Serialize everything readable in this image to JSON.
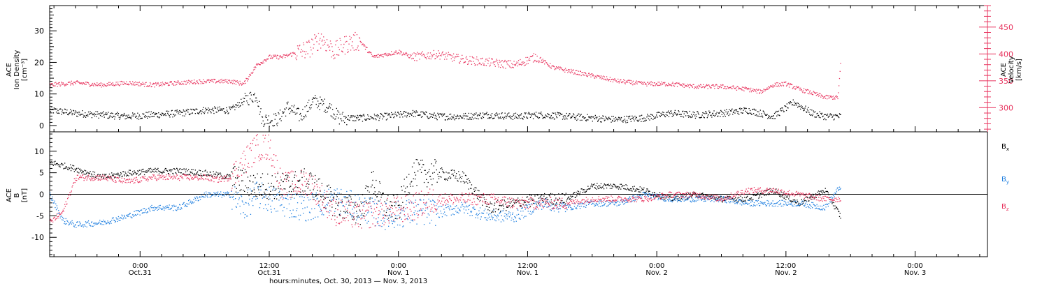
{
  "figure": {
    "xlabel": "hours:minutes, Oct. 30, 2013 — Nov.  3, 2013",
    "x_ticks": [
      {
        "t": 0.35,
        "time": "0:00",
        "date": "Oct.31"
      },
      {
        "t": 0.85,
        "time": "12:00",
        "date": "Oct.31"
      },
      {
        "t": 1.35,
        "time": "0:00",
        "date": "Nov. 1"
      },
      {
        "t": 1.85,
        "time": "12:00",
        "date": "Nov. 1"
      },
      {
        "t": 2.35,
        "time": "0:00",
        "date": "Nov. 2"
      },
      {
        "t": 2.85,
        "time": "12:00",
        "date": "Nov. 2"
      },
      {
        "t": 3.35,
        "time": "0:00",
        "date": "Nov. 3"
      }
    ],
    "xlim": [
      0.0,
      3.63
    ],
    "data_end": 3.06
  },
  "colors": {
    "black": "#000000",
    "pink": "#e8355f",
    "blue": "#1f7fe0",
    "axis": "#000000"
  },
  "chart_data": [
    {
      "type": "scatter",
      "ylabel_left": [
        "ACE",
        "Ion Density",
        "[cm⁻³]"
      ],
      "ylabel_right": [
        "ACE",
        "Velocity",
        "[km/s]"
      ],
      "ylim_left": [
        -2,
        38
      ],
      "yticks_left": [
        0,
        10,
        20,
        30
      ],
      "ylim_right": [
        255,
        490
      ],
      "yticks_right": [
        300,
        350,
        400,
        450
      ],
      "series": [
        {
          "axis": "left",
          "color": "black",
          "values": [
            [
              0.0,
              5
            ],
            [
              0.1,
              4
            ],
            [
              0.2,
              3.5
            ],
            [
              0.3,
              3
            ],
            [
              0.4,
              3.5
            ],
            [
              0.5,
              4
            ],
            [
              0.6,
              5
            ],
            [
              0.7,
              5
            ],
            [
              0.75,
              8
            ],
            [
              0.8,
              10
            ],
            [
              0.82,
              2
            ],
            [
              0.88,
              2
            ],
            [
              0.92,
              6
            ],
            [
              0.97,
              3
            ],
            [
              1.02,
              8
            ],
            [
              1.08,
              6
            ],
            [
              1.12,
              2.5
            ],
            [
              1.2,
              2.5
            ],
            [
              1.3,
              3
            ],
            [
              1.4,
              4
            ],
            [
              1.5,
              3
            ],
            [
              1.6,
              3
            ],
            [
              1.7,
              3.5
            ],
            [
              1.8,
              3
            ],
            [
              1.9,
              3.5
            ],
            [
              2.0,
              3
            ],
            [
              2.1,
              2.5
            ],
            [
              2.2,
              2
            ],
            [
              2.3,
              2.5
            ],
            [
              2.4,
              4
            ],
            [
              2.5,
              3.5
            ],
            [
              2.6,
              4
            ],
            [
              2.7,
              5
            ],
            [
              2.8,
              3
            ],
            [
              2.88,
              7.5
            ],
            [
              2.95,
              4
            ],
            [
              3.0,
              3
            ],
            [
              3.06,
              3
            ]
          ]
        },
        {
          "axis": "right",
          "color": "pink",
          "values": [
            [
              0.0,
              343
            ],
            [
              0.1,
              347
            ],
            [
              0.2,
              343
            ],
            [
              0.3,
              347
            ],
            [
              0.4,
              343
            ],
            [
              0.5,
              347
            ],
            [
              0.6,
              350
            ],
            [
              0.7,
              350
            ],
            [
              0.75,
              345
            ],
            [
              0.8,
              380
            ],
            [
              0.85,
              395
            ],
            [
              0.9,
              395
            ],
            [
              1.0,
              410
            ],
            [
              1.05,
              430
            ],
            [
              1.1,
              405
            ],
            [
              1.15,
              420
            ],
            [
              1.2,
              425
            ],
            [
              1.25,
              395
            ],
            [
              1.3,
              400
            ],
            [
              1.35,
              405
            ],
            [
              1.4,
              395
            ],
            [
              1.5,
              400
            ],
            [
              1.6,
              390
            ],
            [
              1.7,
              385
            ],
            [
              1.8,
              380
            ],
            [
              1.88,
              395
            ],
            [
              1.95,
              375
            ],
            [
              2.0,
              370
            ],
            [
              2.1,
              360
            ],
            [
              2.2,
              350
            ],
            [
              2.3,
              345
            ],
            [
              2.4,
              345
            ],
            [
              2.5,
              340
            ],
            [
              2.6,
              340
            ],
            [
              2.7,
              335
            ],
            [
              2.75,
              330
            ],
            [
              2.8,
              343
            ],
            [
              2.85,
              345
            ],
            [
              2.9,
              335
            ],
            [
              2.95,
              328
            ],
            [
              3.0,
              320
            ],
            [
              3.05,
              320
            ],
            [
              3.06,
              380
            ]
          ]
        }
      ]
    },
    {
      "type": "scatter",
      "ylabel_left": [
        "ACE",
        "B",
        "[nT]"
      ],
      "ylim": [
        -14.5,
        14.5
      ],
      "yticks": [
        -10,
        -5,
        0,
        5,
        10
      ],
      "zero_line": true,
      "legend": [
        {
          "label": "B",
          "sub": "x",
          "color": "black"
        },
        {
          "label": "B",
          "sub": "y",
          "color": "blue"
        },
        {
          "label": "B",
          "sub": "z",
          "color": "pink"
        }
      ],
      "series": [
        {
          "color": "black",
          "values": [
            [
              0.0,
              7.5
            ],
            [
              0.1,
              6
            ],
            [
              0.2,
              4
            ],
            [
              0.3,
              5
            ],
            [
              0.4,
              5.5
            ],
            [
              0.5,
              5.5
            ],
            [
              0.6,
              5
            ],
            [
              0.7,
              4
            ],
            [
              0.8,
              2
            ],
            [
              0.9,
              2
            ],
            [
              1.0,
              3
            ],
            [
              1.1,
              -2
            ],
            [
              1.2,
              -4
            ],
            [
              1.25,
              3
            ],
            [
              1.3,
              -3
            ],
            [
              1.35,
              -3
            ],
            [
              1.4,
              5
            ],
            [
              1.5,
              5
            ],
            [
              1.6,
              4
            ],
            [
              1.7,
              -3
            ],
            [
              1.8,
              -2
            ],
            [
              1.9,
              -1
            ],
            [
              2.0,
              -1
            ],
            [
              2.1,
              2
            ],
            [
              2.2,
              2
            ],
            [
              2.3,
              1
            ],
            [
              2.4,
              -1
            ],
            [
              2.5,
              0
            ],
            [
              2.6,
              -1
            ],
            [
              2.7,
              -1
            ],
            [
              2.8,
              1
            ],
            [
              2.9,
              -2
            ],
            [
              3.0,
              1
            ],
            [
              3.06,
              -5
            ]
          ]
        },
        {
          "color": "blue",
          "values": [
            [
              0.0,
              0
            ],
            [
              0.05,
              -6
            ],
            [
              0.1,
              -7
            ],
            [
              0.2,
              -6.5
            ],
            [
              0.3,
              -5
            ],
            [
              0.4,
              -3
            ],
            [
              0.5,
              -3
            ],
            [
              0.6,
              0
            ],
            [
              0.7,
              0
            ],
            [
              0.75,
              -3
            ],
            [
              0.8,
              0
            ],
            [
              0.9,
              -2
            ],
            [
              1.0,
              -3
            ],
            [
              1.1,
              -1
            ],
            [
              1.2,
              -3
            ],
            [
              1.3,
              -5
            ],
            [
              1.4,
              -4
            ],
            [
              1.5,
              -4
            ],
            [
              1.6,
              -3
            ],
            [
              1.7,
              -5
            ],
            [
              1.8,
              -5
            ],
            [
              1.9,
              -2
            ],
            [
              2.0,
              -3
            ],
            [
              2.1,
              -2
            ],
            [
              2.2,
              -2
            ],
            [
              2.3,
              0
            ],
            [
              2.4,
              -1
            ],
            [
              2.5,
              -1
            ],
            [
              2.6,
              -1
            ],
            [
              2.7,
              -2
            ],
            [
              2.8,
              -2
            ],
            [
              2.9,
              -2
            ],
            [
              3.0,
              -3
            ],
            [
              3.06,
              2
            ]
          ]
        },
        {
          "color": "pink",
          "values": [
            [
              0.0,
              -6.5
            ],
            [
              0.05,
              -4
            ],
            [
              0.1,
              4
            ],
            [
              0.2,
              4
            ],
            [
              0.3,
              3
            ],
            [
              0.4,
              4
            ],
            [
              0.5,
              4
            ],
            [
              0.6,
              4
            ],
            [
              0.65,
              3.5
            ],
            [
              0.7,
              4
            ],
            [
              0.8,
              11
            ],
            [
              0.85,
              11
            ],
            [
              0.9,
              2
            ],
            [
              1.0,
              3
            ],
            [
              1.1,
              -4
            ],
            [
              1.2,
              -5
            ],
            [
              1.3,
              -4
            ],
            [
              1.4,
              -3
            ],
            [
              1.5,
              -1
            ],
            [
              1.6,
              -1
            ],
            [
              1.7,
              -1
            ],
            [
              1.8,
              -2
            ],
            [
              1.9,
              -2
            ],
            [
              2.0,
              -2
            ],
            [
              2.1,
              -1
            ],
            [
              2.2,
              -1
            ],
            [
              2.3,
              -1
            ],
            [
              2.4,
              0
            ],
            [
              2.5,
              0
            ],
            [
              2.6,
              -1
            ],
            [
              2.7,
              1
            ],
            [
              2.8,
              1
            ],
            [
              2.9,
              0
            ],
            [
              3.0,
              -1
            ],
            [
              3.06,
              -1
            ]
          ]
        }
      ]
    }
  ]
}
